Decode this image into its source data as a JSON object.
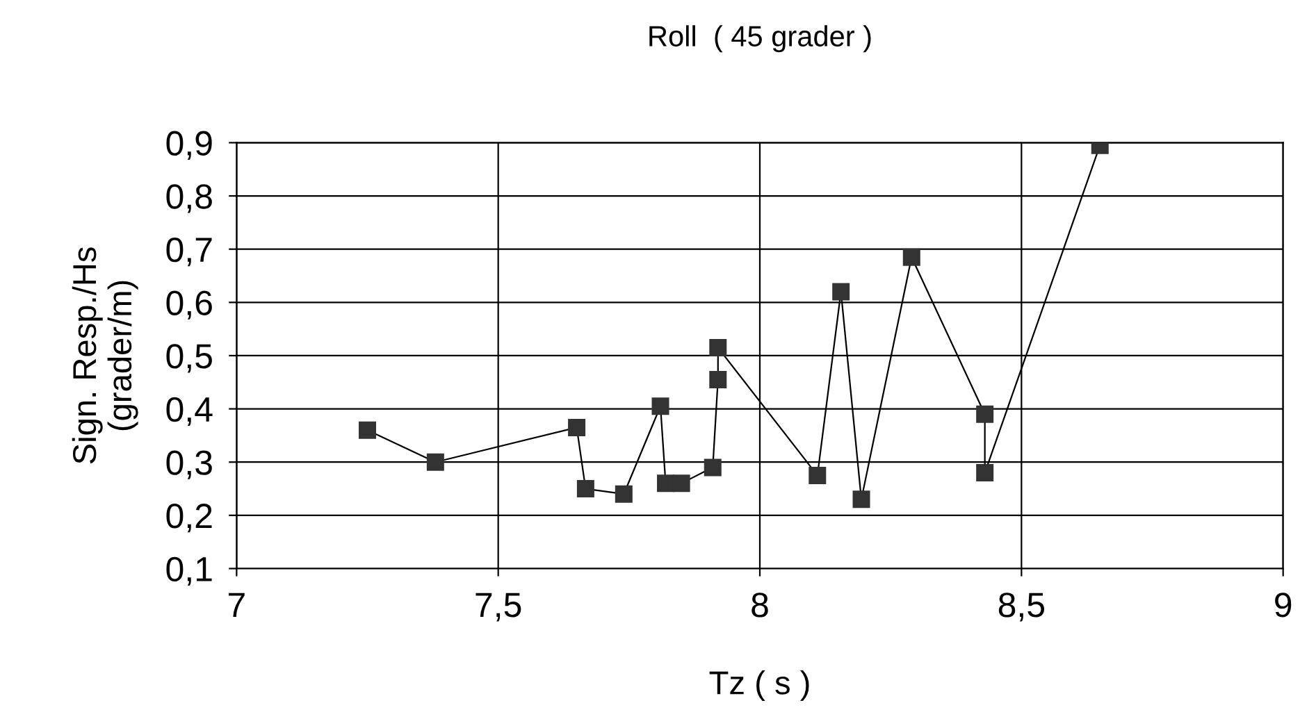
{
  "chart_data": {
    "type": "line",
    "title": "Roll  ( 45 grader )",
    "xlabel": "Tz ( s )",
    "ylabel": "Sign. Resp./Hs\n(grader/m)",
    "x": [
      7.25,
      7.38,
      7.65,
      7.667,
      7.74,
      7.81,
      7.82,
      7.85,
      7.91,
      7.92,
      7.92,
      8.11,
      8.155,
      8.194,
      8.29,
      8.43,
      8.43,
      8.65
    ],
    "series": [
      {
        "color": "#333333",
        "values": [
          0.36,
          0.3,
          0.365,
          0.25,
          0.24,
          0.405,
          0.26,
          0.26,
          0.29,
          0.455,
          0.515,
          0.275,
          0.62,
          0.23,
          0.685,
          0.39,
          0.28,
          0.895
        ]
      }
    ],
    "xlim": [
      7,
      9
    ],
    "ylim": [
      0.1,
      0.9
    ],
    "xticks": [
      7,
      {
        "value": 7.5,
        "label": "7,5"
      },
      8,
      {
        "value": 8.5,
        "label": "8,5"
      },
      9
    ],
    "yticks": [
      {
        "value": 0.1,
        "label": "0,1"
      },
      {
        "value": 0.2,
        "label": "0,2"
      },
      {
        "value": 0.3,
        "label": "0,3"
      },
      {
        "value": 0.4,
        "label": "0,4"
      },
      {
        "value": 0.5,
        "label": "0,5"
      },
      {
        "value": 0.6,
        "label": "0,6"
      },
      {
        "value": 0.7,
        "label": "0,7"
      },
      {
        "value": 0.8,
        "label": "0,8"
      },
      {
        "value": 0.9,
        "label": "0,9"
      }
    ],
    "grid": true,
    "marker": "square",
    "line_style": "solid",
    "legend": false
  }
}
